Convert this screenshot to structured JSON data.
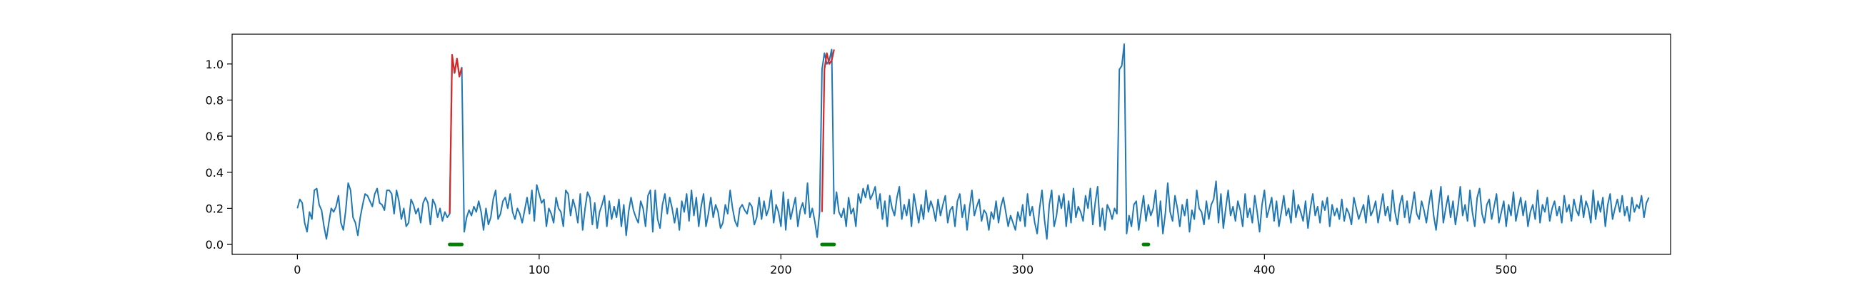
{
  "chart_data": {
    "type": "line",
    "title": "",
    "xlabel": "",
    "ylabel": "",
    "xlim": [
      -27,
      568
    ],
    "ylim": [
      -0.055,
      1.165
    ],
    "x_ticks": [
      0,
      100,
      200,
      300,
      400,
      500
    ],
    "y_ticks": [
      0.0,
      0.2,
      0.4,
      0.6,
      0.8,
      1.0
    ],
    "x_tick_labels": [
      "0",
      "100",
      "200",
      "300",
      "400",
      "500"
    ],
    "y_tick_labels": [
      "0.0",
      "0.2",
      "0.4",
      "0.6",
      "0.8",
      "1.0"
    ],
    "grid": false,
    "series": [
      {
        "color": "#1f77b4",
        "x_start": 0,
        "values": [
          0.2,
          0.25,
          0.23,
          0.12,
          0.07,
          0.18,
          0.14,
          0.3,
          0.31,
          0.22,
          0.19,
          0.1,
          0.03,
          0.12,
          0.2,
          0.18,
          0.21,
          0.27,
          0.12,
          0.08,
          0.19,
          0.34,
          0.3,
          0.15,
          0.12,
          0.05,
          0.15,
          0.22,
          0.28,
          0.27,
          0.24,
          0.21,
          0.28,
          0.31,
          0.23,
          0.22,
          0.19,
          0.3,
          0.3,
          0.28,
          0.17,
          0.3,
          0.24,
          0.14,
          0.2,
          0.1,
          0.12,
          0.25,
          0.22,
          0.17,
          0.2,
          0.12,
          0.23,
          0.26,
          0.23,
          0.11,
          0.25,
          0.22,
          0.15,
          0.2,
          0.13,
          0.18,
          0.15,
          0.17,
          1.05,
          0.95,
          1.03,
          0.93,
          0.98,
          0.07,
          0.15,
          0.19,
          0.16,
          0.21,
          0.18,
          0.24,
          0.18,
          0.08,
          0.2,
          0.11,
          0.15,
          0.25,
          0.3,
          0.14,
          0.17,
          0.24,
          0.26,
          0.2,
          0.28,
          0.18,
          0.14,
          0.2,
          0.17,
          0.12,
          0.19,
          0.26,
          0.17,
          0.3,
          0.13,
          0.33,
          0.28,
          0.23,
          0.25,
          0.1,
          0.2,
          0.17,
          0.12,
          0.26,
          0.2,
          0.18,
          0.1,
          0.3,
          0.28,
          0.16,
          0.25,
          0.2,
          0.12,
          0.28,
          0.08,
          0.2,
          0.29,
          0.26,
          0.11,
          0.23,
          0.09,
          0.18,
          0.22,
          0.27,
          0.1,
          0.24,
          0.14,
          0.21,
          0.15,
          0.25,
          0.1,
          0.22,
          0.05,
          0.18,
          0.26,
          0.19,
          0.15,
          0.12,
          0.24,
          0.2,
          0.1,
          0.27,
          0.3,
          0.07,
          0.3,
          0.14,
          0.09,
          0.22,
          0.28,
          0.17,
          0.26,
          0.2,
          0.12,
          0.2,
          0.08,
          0.24,
          0.18,
          0.28,
          0.13,
          0.3,
          0.16,
          0.26,
          0.1,
          0.21,
          0.28,
          0.1,
          0.17,
          0.26,
          0.15,
          0.22,
          0.18,
          0.09,
          0.12,
          0.22,
          0.17,
          0.3,
          0.2,
          0.13,
          0.1,
          0.2,
          0.22,
          0.19,
          0.17,
          0.23,
          0.21,
          0.11,
          0.15,
          0.26,
          0.14,
          0.24,
          0.16,
          0.2,
          0.3,
          0.12,
          0.22,
          0.18,
          0.1,
          0.29,
          0.08,
          0.25,
          0.14,
          0.2,
          0.26,
          0.1,
          0.19,
          0.23,
          0.17,
          0.34,
          0.15,
          0.2,
          0.13,
          0.04,
          0.18,
          0.97,
          1.06,
          1.0,
          1.02,
          1.08,
          0.17,
          0.29,
          0.18,
          0.15,
          0.2,
          0.1,
          0.26,
          0.17,
          0.2,
          0.1,
          0.28,
          0.23,
          0.31,
          0.26,
          0.33,
          0.25,
          0.28,
          0.32,
          0.2,
          0.28,
          0.14,
          0.24,
          0.1,
          0.27,
          0.2,
          0.16,
          0.26,
          0.32,
          0.14,
          0.22,
          0.16,
          0.25,
          0.1,
          0.28,
          0.2,
          0.12,
          0.22,
          0.14,
          0.3,
          0.18,
          0.24,
          0.2,
          0.13,
          0.25,
          0.16,
          0.22,
          0.27,
          0.12,
          0.19,
          0.21,
          0.1,
          0.24,
          0.28,
          0.15,
          0.22,
          0.08,
          0.2,
          0.3,
          0.16,
          0.21,
          0.25,
          0.13,
          0.19,
          0.17,
          0.08,
          0.18,
          0.14,
          0.24,
          0.12,
          0.21,
          0.26,
          0.18,
          0.1,
          0.16,
          0.12,
          0.08,
          0.18,
          0.13,
          0.22,
          0.1,
          0.28,
          0.16,
          0.21,
          0.12,
          0.06,
          0.2,
          0.3,
          0.14,
          0.03,
          0.22,
          0.3,
          0.1,
          0.16,
          0.27,
          0.2,
          0.28,
          0.1,
          0.24,
          0.12,
          0.31,
          0.15,
          0.21,
          0.18,
          0.13,
          0.27,
          0.2,
          0.31,
          0.11,
          0.23,
          0.32,
          0.1,
          0.2,
          0.08,
          0.22,
          0.19,
          0.14,
          0.2,
          0.17,
          0.97,
          0.99,
          1.11,
          0.06,
          0.16,
          0.1,
          0.22,
          0.24,
          0.08,
          0.18,
          0.27,
          0.13,
          0.22,
          0.16,
          0.2,
          0.3,
          0.1,
          0.24,
          0.06,
          0.17,
          0.34,
          0.18,
          0.13,
          0.27,
          0.2,
          0.1,
          0.22,
          0.16,
          0.25,
          0.07,
          0.19,
          0.14,
          0.3,
          0.2,
          0.18,
          0.11,
          0.24,
          0.14,
          0.22,
          0.25,
          0.35,
          0.12,
          0.28,
          0.09,
          0.2,
          0.3,
          0.16,
          0.21,
          0.13,
          0.24,
          0.19,
          0.1,
          0.28,
          0.15,
          0.2,
          0.12,
          0.27,
          0.18,
          0.07,
          0.22,
          0.3,
          0.15,
          0.2,
          0.26,
          0.13,
          0.24,
          0.1,
          0.18,
          0.27,
          0.16,
          0.2,
          0.12,
          0.3,
          0.15,
          0.22,
          0.18,
          0.13,
          0.24,
          0.09,
          0.2,
          0.28,
          0.16,
          0.21,
          0.12,
          0.24,
          0.19,
          0.26,
          0.1,
          0.22,
          0.16,
          0.2,
          0.14,
          0.25,
          0.13,
          0.2,
          0.17,
          0.11,
          0.26,
          0.2,
          0.14,
          0.18,
          0.22,
          0.12,
          0.27,
          0.16,
          0.19,
          0.24,
          0.12,
          0.2,
          0.28,
          0.16,
          0.21,
          0.13,
          0.3,
          0.18,
          0.11,
          0.22,
          0.27,
          0.15,
          0.24,
          0.12,
          0.2,
          0.29,
          0.17,
          0.14,
          0.24,
          0.19,
          0.12,
          0.22,
          0.3,
          0.16,
          0.08,
          0.21,
          0.32,
          0.12,
          0.2,
          0.27,
          0.15,
          0.24,
          0.11,
          0.2,
          0.32,
          0.16,
          0.22,
          0.13,
          0.3,
          0.18,
          0.1,
          0.26,
          0.31,
          0.17,
          0.12,
          0.22,
          0.25,
          0.14,
          0.21,
          0.28,
          0.12,
          0.18,
          0.24,
          0.1,
          0.22,
          0.16,
          0.29,
          0.13,
          0.2,
          0.26,
          0.16,
          0.24,
          0.1,
          0.18,
          0.22,
          0.14,
          0.3,
          0.12,
          0.22,
          0.18,
          0.26,
          0.13,
          0.2,
          0.24,
          0.16,
          0.21,
          0.12,
          0.27,
          0.18,
          0.22,
          0.13,
          0.25,
          0.19,
          0.16,
          0.27,
          0.15,
          0.24,
          0.2,
          0.12,
          0.3,
          0.14,
          0.24,
          0.18,
          0.26,
          0.1,
          0.22,
          0.28,
          0.14,
          0.2,
          0.25,
          0.18,
          0.27,
          0.16,
          0.21,
          0.13,
          0.26,
          0.18,
          0.22,
          0.2,
          0.27,
          0.15,
          0.23,
          0.26
        ]
      },
      {
        "color": "#d62728",
        "segments": [
          {
            "x": [
              63,
              64,
              65,
              66,
              67,
              68
            ],
            "values": [
              0.17,
              1.05,
              0.95,
              1.03,
              0.93,
              0.98
            ]
          },
          {
            "x": [
              217,
              218,
              219,
              220,
              221,
              222
            ],
            "values": [
              0.18,
              0.97,
              1.06,
              1.0,
              1.02,
              1.08
            ]
          }
        ]
      },
      {
        "color": "#008000",
        "baseline": 0.0,
        "segments": [
          {
            "x": [
              63,
              64,
              65,
              66,
              67,
              68
            ],
            "values": [
              0,
              0,
              0,
              0,
              0,
              0
            ]
          },
          {
            "x": [
              217,
              218,
              219,
              220,
              221,
              222
            ],
            "values": [
              0,
              0,
              0,
              0,
              0,
              0
            ]
          },
          {
            "x": [
              350,
              351,
              352
            ],
            "values": [
              0,
              0,
              0
            ]
          }
        ]
      }
    ]
  }
}
